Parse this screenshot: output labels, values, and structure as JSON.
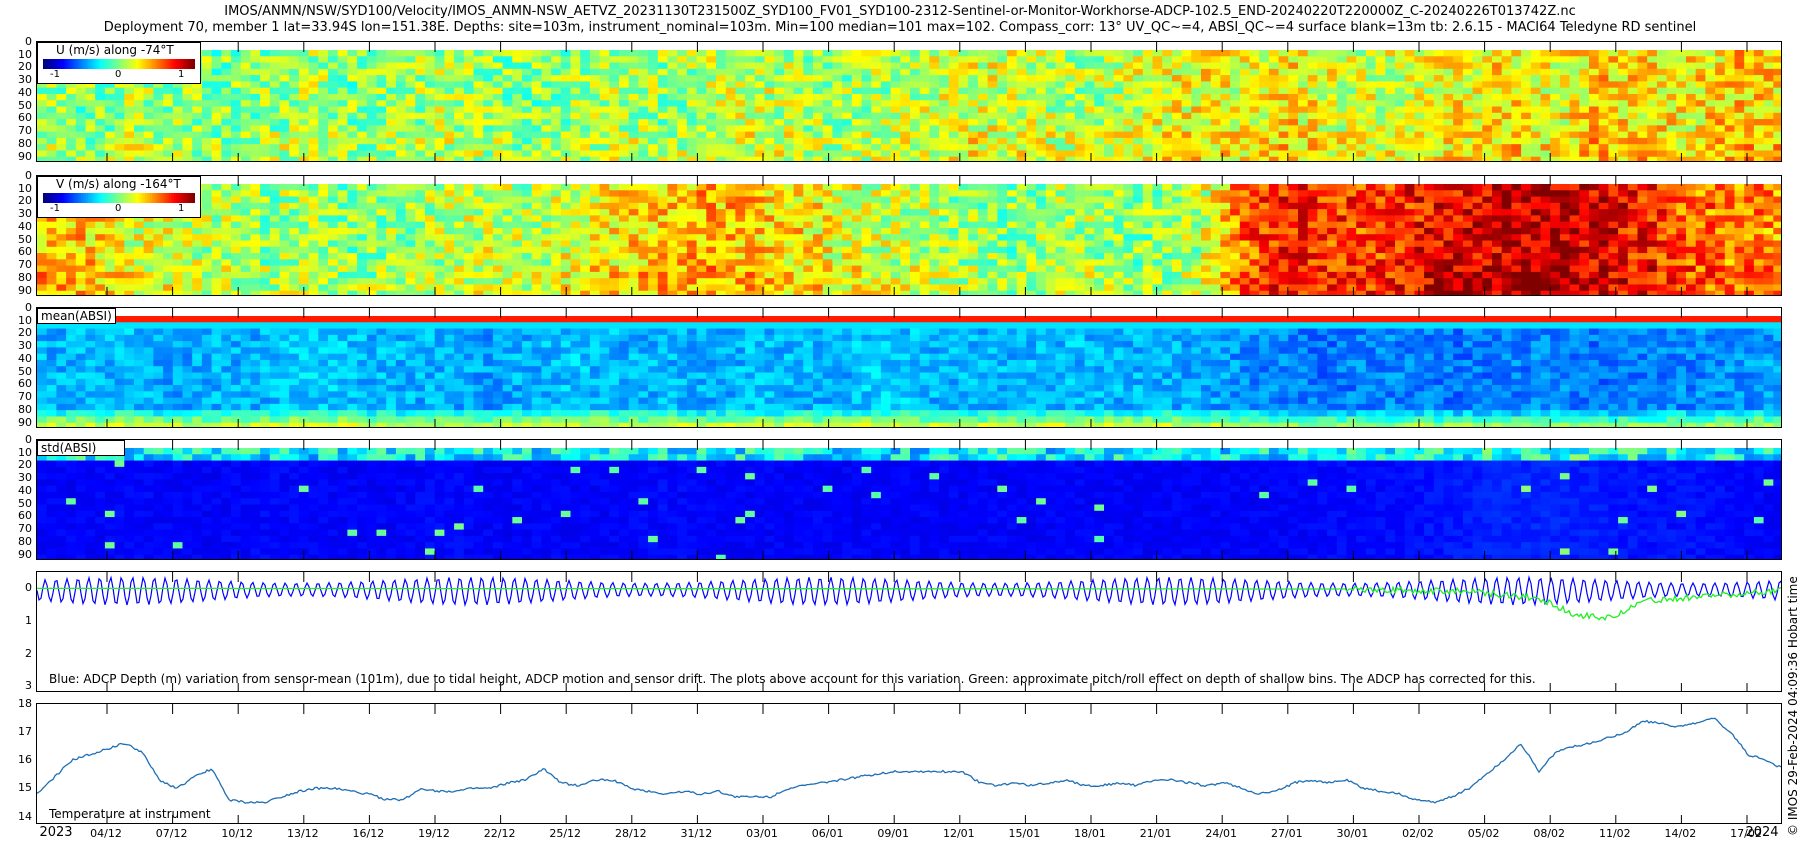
{
  "header": {
    "line1": "IMOS/ANMN/NSW/SYD100/Velocity/IMOS_ANMN-NSW_AETVZ_20231130T231500Z_SYD100_FV01_SYD100-2312-Sentinel-or-Monitor-Workhorse-ADCP-102.5_END-20240220T220000Z_C-20240226T013742Z.nc",
    "line2": "Deployment 70, member 1 lat=33.94S lon=151.38E. Depths: site=103m, instrument_nominal=103m. Min=100 median=101 max=102. Compass_corr: 13° UV_QC~=4, ABSI_QC~=4 surface blank=13m tb: 2.6.15 - MACI64 Teledyne RD sentinel"
  },
  "credit": "© IMOS 29-Feb-2024 04:09:36 Hobart time",
  "colors": {
    "series_depth": "#0000ff",
    "series_pitch": "#22ee22",
    "series_temp": "#1f6fb4"
  },
  "chart_data": [
    {
      "type": "heatmap",
      "label": "U (m/s) along -74°T",
      "colorbar_ticks": [
        "-1",
        "0",
        "1"
      ],
      "clim": [
        -1,
        1
      ],
      "y_ticks": [
        "0",
        "10",
        "20",
        "30",
        "40",
        "50",
        "60",
        "70",
        "80",
        "90"
      ],
      "ylim": [
        0,
        95
      ],
      "colormap": "jet",
      "column_values": [
        0.05,
        0.0,
        0.1,
        0.05,
        0.0,
        0.05,
        0.1,
        0.0,
        0.05,
        0.1,
        0.05,
        0.0,
        0.05,
        0.1,
        0.05,
        0.1,
        0.15,
        0.1,
        0.05,
        0.1,
        0.15,
        0.2,
        0.15,
        0.1,
        0.1,
        0.2,
        0.25,
        0.2,
        0.3,
        0.2,
        0.15,
        0.2,
        0.25,
        0.3,
        0.2,
        0.35,
        0.3,
        0.25,
        0.35,
        0.3
      ]
    },
    {
      "type": "heatmap",
      "label": "V (m/s) along -164°T",
      "colorbar_ticks": [
        "-1",
        "0",
        "1"
      ],
      "clim": [
        -1,
        1
      ],
      "y_ticks": [
        "0",
        "10",
        "20",
        "30",
        "40",
        "50",
        "60",
        "70",
        "80",
        "90"
      ],
      "ylim": [
        0,
        95
      ],
      "colormap": "jet",
      "column_values": [
        0.4,
        0.35,
        0.2,
        0.15,
        0.1,
        0.05,
        0.1,
        0.0,
        0.05,
        0.1,
        0.15,
        0.1,
        0.2,
        0.3,
        0.35,
        0.4,
        0.35,
        0.3,
        0.2,
        0.15,
        0.1,
        0.05,
        0.0,
        0.1,
        0.05,
        0.0,
        0.1,
        0.55,
        0.7,
        0.65,
        0.6,
        0.75,
        0.8,
        0.85,
        0.9,
        0.8,
        0.7,
        0.55,
        0.5,
        0.45
      ]
    },
    {
      "type": "heatmap",
      "label": "mean(ABSI)",
      "y_ticks": [
        "0",
        "10",
        "20",
        "30",
        "40",
        "50",
        "60",
        "70",
        "80",
        "90"
      ],
      "ylim": [
        0,
        95
      ],
      "colormap": "jet",
      "column_values": [
        0.3,
        0.3,
        0.32,
        0.28,
        0.3,
        0.3,
        0.33,
        0.31,
        0.3,
        0.3,
        0.28,
        0.3,
        0.32,
        0.3,
        0.3,
        0.29,
        0.31,
        0.3,
        0.3,
        0.33,
        0.3,
        0.3,
        0.3,
        0.31,
        0.3,
        0.3,
        0.29,
        0.27,
        0.25,
        0.24,
        0.26,
        0.25,
        0.24,
        0.25,
        0.26,
        0.24,
        0.25,
        0.26,
        0.27,
        0.28
      ]
    },
    {
      "type": "heatmap",
      "label": "std(ABSI)",
      "y_ticks": [
        "0",
        "10",
        "20",
        "30",
        "40",
        "50",
        "60",
        "70",
        "80",
        "90"
      ],
      "ylim": [
        0,
        95
      ],
      "colormap": "jet",
      "column_values": [
        0.12,
        0.12,
        0.13,
        0.12,
        0.12,
        0.13,
        0.12,
        0.12,
        0.12,
        0.13,
        0.12,
        0.12,
        0.12,
        0.12,
        0.13,
        0.12,
        0.12,
        0.12,
        0.12,
        0.12,
        0.12,
        0.12,
        0.12,
        0.12,
        0.12,
        0.12,
        0.12,
        0.12,
        0.12,
        0.13,
        0.13,
        0.14,
        0.15,
        0.16,
        0.16,
        0.15,
        0.14,
        0.14,
        0.13,
        0.12
      ]
    },
    {
      "type": "line",
      "y_ticks": [
        "0",
        "1",
        "2",
        "3"
      ],
      "ylim": [
        -0.5,
        3.2
      ],
      "y_reversed": true,
      "note": "Blue: ADCP Depth (m) variation from sensor-mean (101m), due to tidal height, ADCP motion and sensor drift. The plots above account for this variation. Green: approximate pitch/roll effect on depth of shallow bins. The ADCP has corrected for this.",
      "series": [
        {
          "type": "tidal",
          "cycles": 160,
          "amplitude_min": 0.4,
          "amplitude_max": 0.85
        },
        {
          "type": "pitch",
          "x": [
            0,
            0.75,
            0.82,
            0.86,
            0.88,
            0.9,
            0.92,
            1.0
          ],
          "y": [
            0.0,
            0.02,
            0.1,
            0.3,
            0.8,
            0.9,
            0.4,
            0.05
          ]
        }
      ]
    },
    {
      "type": "line",
      "y_ticks": [
        "14",
        "15",
        "16",
        "17",
        "18"
      ],
      "ylim": [
        13.7,
        18.0
      ],
      "annotation": "Temperature at instrument",
      "series": [
        {
          "x": [
            0,
            0.01,
            0.02,
            0.03,
            0.04,
            0.05,
            0.06,
            0.07,
            0.08,
            0.09,
            0.1,
            0.11,
            0.12,
            0.13,
            0.14,
            0.15,
            0.16,
            0.17,
            0.18,
            0.19,
            0.2,
            0.21,
            0.22,
            0.23,
            0.24,
            0.25,
            0.26,
            0.27,
            0.28,
            0.29,
            0.3,
            0.31,
            0.32,
            0.33,
            0.34,
            0.35,
            0.36,
            0.37,
            0.38,
            0.39,
            0.4,
            0.41,
            0.42,
            0.43,
            0.44,
            0.45,
            0.46,
            0.47,
            0.48,
            0.49,
            0.5,
            0.51,
            0.52,
            0.53,
            0.54,
            0.55,
            0.56,
            0.57,
            0.58,
            0.59,
            0.6,
            0.61,
            0.62,
            0.63,
            0.64,
            0.65,
            0.66,
            0.67,
            0.68,
            0.69,
            0.7,
            0.71,
            0.72,
            0.73,
            0.74,
            0.75,
            0.76,
            0.77,
            0.78,
            0.79,
            0.8,
            0.81,
            0.82,
            0.83,
            0.84,
            0.85,
            0.86,
            0.87,
            0.88,
            0.89,
            0.9,
            0.91,
            0.92,
            0.93,
            0.94,
            0.95,
            0.96,
            0.97,
            0.98,
            0.99,
            1.0
          ],
          "y": [
            14.8,
            15.4,
            16.0,
            16.2,
            16.4,
            16.6,
            16.3,
            15.3,
            15.0,
            15.4,
            15.7,
            14.6,
            14.5,
            14.5,
            14.7,
            14.9,
            15.0,
            15.0,
            14.9,
            14.8,
            14.6,
            14.6,
            15.0,
            14.9,
            14.9,
            15.0,
            15.0,
            15.2,
            15.3,
            15.7,
            15.2,
            15.1,
            15.3,
            15.3,
            15.0,
            14.9,
            14.8,
            14.9,
            14.8,
            14.9,
            14.7,
            14.7,
            14.7,
            15.0,
            15.1,
            15.2,
            15.3,
            15.4,
            15.5,
            15.6,
            15.6,
            15.6,
            15.6,
            15.6,
            15.2,
            15.1,
            15.2,
            15.1,
            15.2,
            15.3,
            15.1,
            15.1,
            15.2,
            15.1,
            15.3,
            15.3,
            15.2,
            15.1,
            15.2,
            15.0,
            14.8,
            14.9,
            15.2,
            15.3,
            15.2,
            15.3,
            15.0,
            14.9,
            14.8,
            14.6,
            14.5,
            14.7,
            15.0,
            15.5,
            16.0,
            16.6,
            15.6,
            16.3,
            16.5,
            16.6,
            16.8,
            17.0,
            17.4,
            17.3,
            17.2,
            17.3,
            17.5,
            17.0,
            16.2,
            16.0,
            15.7
          ]
        }
      ]
    }
  ],
  "x_axis": {
    "ticks": [
      "04/12",
      "07/12",
      "10/12",
      "13/12",
      "16/12",
      "19/12",
      "22/12",
      "25/12",
      "28/12",
      "31/12",
      "03/01",
      "06/01",
      "09/01",
      "12/01",
      "15/01",
      "18/01",
      "21/01",
      "24/01",
      "27/01",
      "30/01",
      "02/02",
      "05/02",
      "08/02",
      "11/02",
      "14/02",
      "17/02"
    ],
    "year_left": "2023",
    "year_right": "2024"
  }
}
